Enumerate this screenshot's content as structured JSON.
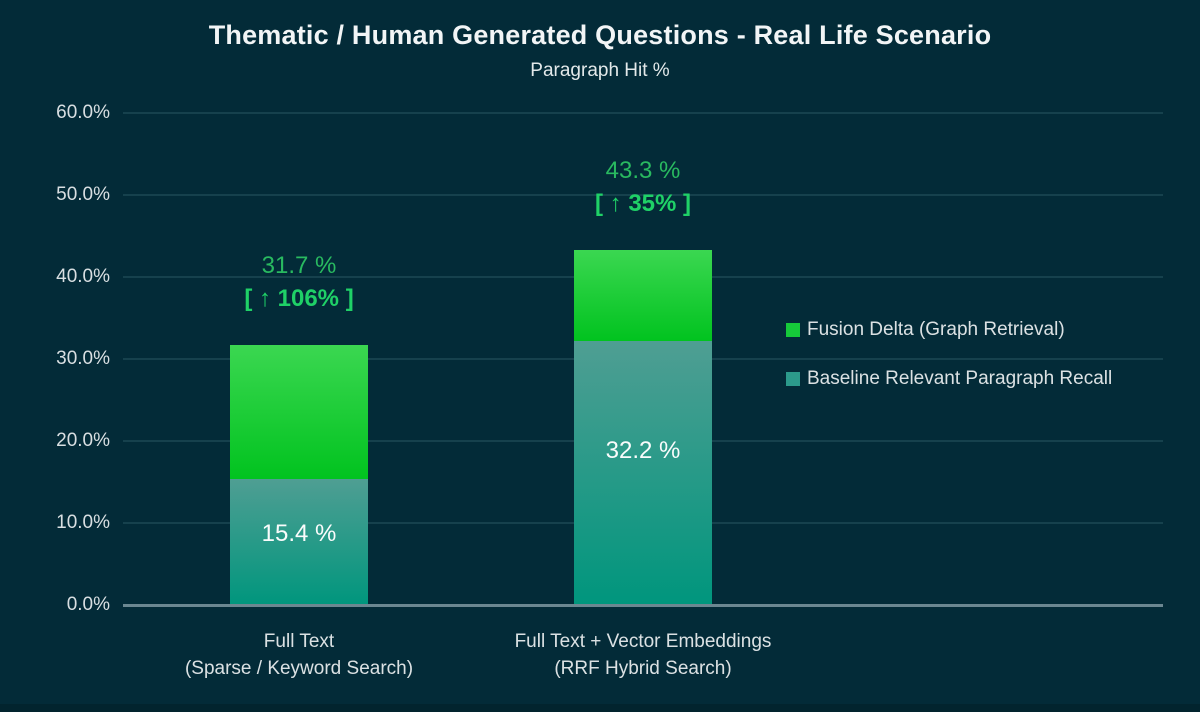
{
  "chart": {
    "title": "Thematic / Human Generated Questions - Real Life Scenario",
    "subtitle": "Paragraph Hit %"
  },
  "legend": {
    "items": [
      {
        "label": "Fusion Delta (Graph Retrieval)",
        "color": "#16c93a"
      },
      {
        "label": "Baseline Relevant Paragraph Recall",
        "color": "#2c9a8b"
      }
    ]
  },
  "colors": {
    "background": "#032b38",
    "gridline": "#16414d",
    "axis_line": "#6b8791",
    "delta_green_top": "#3bd751",
    "delta_green_bottom": "#01c31f",
    "baseline_teal_top": "#4f9e93",
    "baseline_teal_bottom": "#00967d",
    "annotation_green": "#29ba60",
    "annotation_green_bold": "#1fd167",
    "text_light": "#dbe1e3"
  },
  "chart_data": {
    "type": "bar",
    "stacked": true,
    "title": "Thematic / Human Generated Questions - Real Life Scenario",
    "subtitle": "Paragraph Hit %",
    "xlabel": "",
    "ylabel": "Paragraph Hit %",
    "ylim": [
      0,
      60
    ],
    "grid": true,
    "legend_position": "right",
    "categories": [
      [
        "Full Text",
        "(Sparse / Keyword Search)"
      ],
      [
        "Full Text + Vector Embeddings",
        "(RRF Hybrid Search)"
      ]
    ],
    "series": [
      {
        "name": "Baseline Relevant Paragraph Recall",
        "values": [
          15.4,
          32.2
        ],
        "labels": [
          "15.4 %",
          "32.2 %"
        ],
        "color": "#2c9a8b"
      },
      {
        "name": "Fusion Delta (Graph Retrieval)",
        "values": [
          16.3,
          11.1
        ],
        "color": "#16c93a"
      }
    ],
    "totals": {
      "values": [
        31.7,
        43.3
      ],
      "labels": [
        "31.7 %",
        "43.3 %"
      ],
      "delta_labels": [
        "[ ↑ 106% ]",
        "[ ↑ 35% ]"
      ]
    },
    "yticks": {
      "values": [
        0,
        10,
        20,
        30,
        40,
        50,
        60
      ],
      "labels": [
        "0.0%",
        "10.0%",
        "20.0%",
        "30.0%",
        "40.0%",
        "50.0%",
        "60.0%"
      ]
    }
  }
}
